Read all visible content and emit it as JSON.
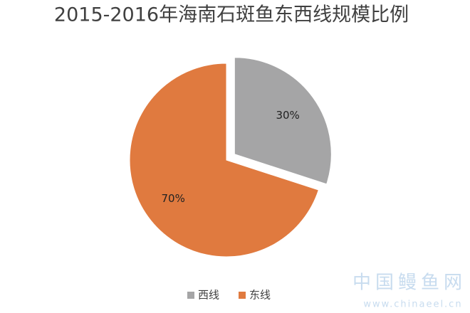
{
  "chart_data": {
    "type": "pie",
    "title": "2015-2016年海南石斑鱼东西线规模比例",
    "categories": [
      "西线",
      "东线"
    ],
    "values": [
      30,
      70
    ],
    "value_labels": [
      "30%",
      "70%"
    ],
    "colors": [
      "#a5a5a6",
      "#e07a3f"
    ],
    "exploded": [
      true,
      false
    ],
    "legend": "bottom",
    "watermark": "中国鳗鱼网",
    "watermark_url": "www.chinaeel.cn"
  }
}
